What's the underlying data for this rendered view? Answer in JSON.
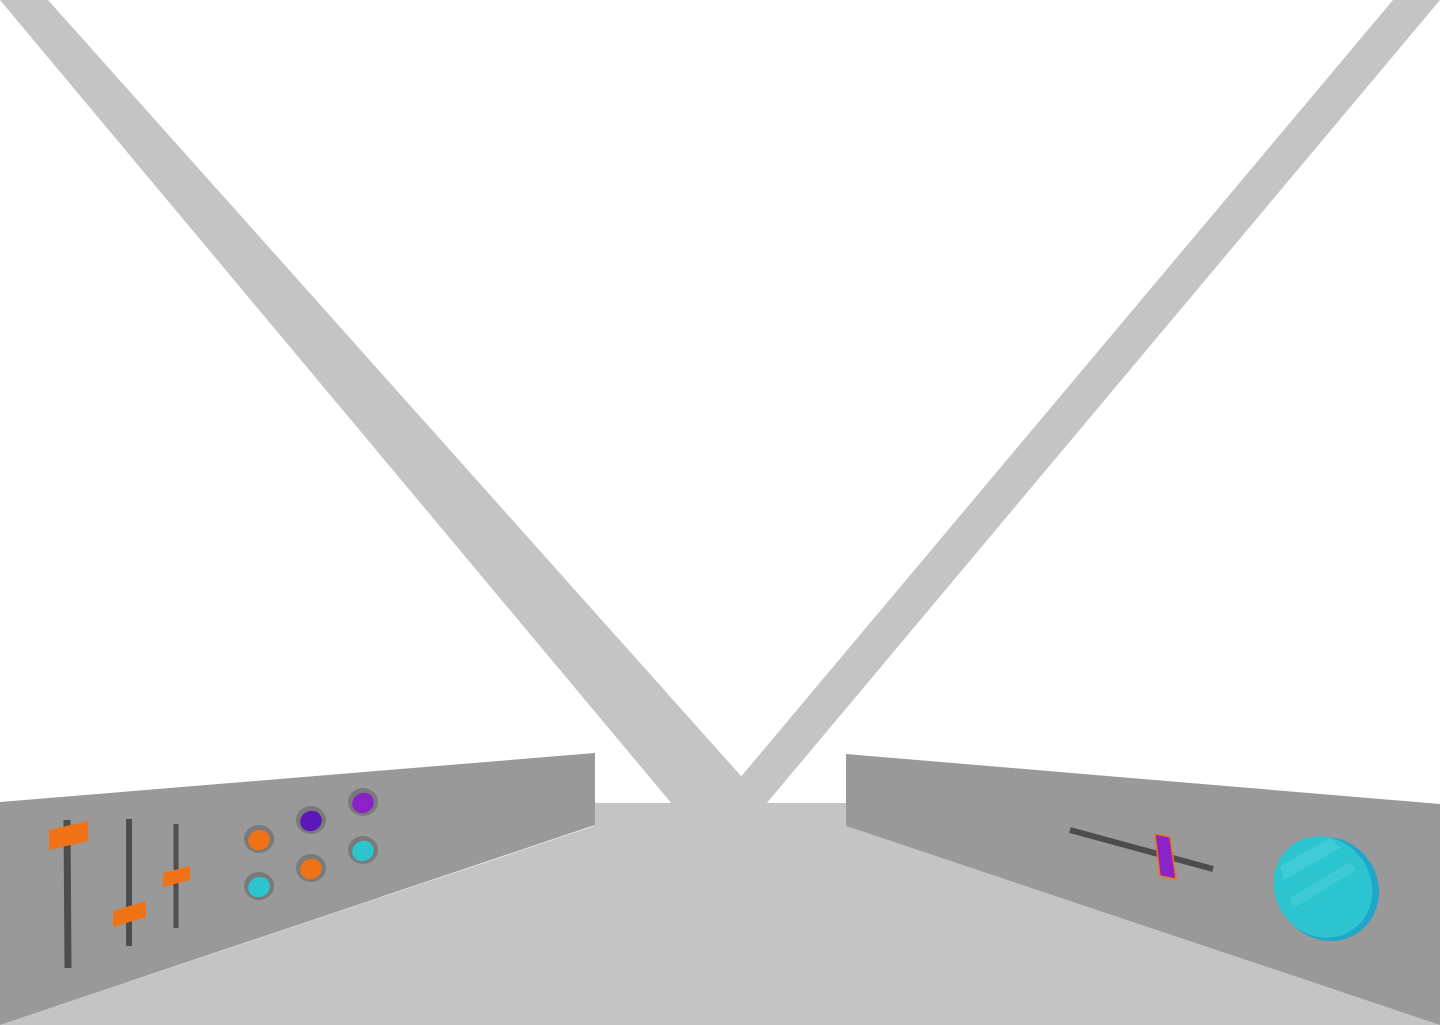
{
  "scene": {
    "view": "cockpit-interior",
    "colors": {
      "background": "#ffffff",
      "frame": "#c4c4c4",
      "floor": "#c4c4c4",
      "console": "#999999",
      "track": "#4d4d4d",
      "knob_rim": "#7a7a7a",
      "orange": "#f07216",
      "purple": "#8a22c8",
      "deep_purple": "#5d17b8",
      "teal": "#2cc4cf",
      "teal_dark": "#1fa7c9",
      "teal_light": "#4fd3dc"
    }
  },
  "left_console": {
    "sliders": [
      {
        "name": "left-slider-1",
        "level": 0.86,
        "color": "orange"
      },
      {
        "name": "left-slider-2",
        "level": 0.26,
        "color": "orange"
      },
      {
        "name": "left-slider-3",
        "level": 0.52,
        "color": "orange"
      }
    ],
    "buttons": [
      {
        "name": "button-orange-1",
        "color": "orange",
        "state": "pressed"
      },
      {
        "name": "button-purple-1",
        "color": "deep_purple",
        "state": "pressed"
      },
      {
        "name": "button-purple-2",
        "color": "purple",
        "state": "pressed"
      },
      {
        "name": "button-teal-1",
        "color": "teal",
        "state": "pressed"
      },
      {
        "name": "button-orange-2",
        "color": "orange",
        "state": "pressed"
      },
      {
        "name": "button-teal-2",
        "color": "teal",
        "state": "pressed"
      }
    ]
  },
  "right_console": {
    "lever": {
      "name": "right-lever",
      "level": 0.66,
      "color": "purple"
    },
    "big_button": {
      "name": "big-teal-button",
      "color": "teal"
    }
  }
}
